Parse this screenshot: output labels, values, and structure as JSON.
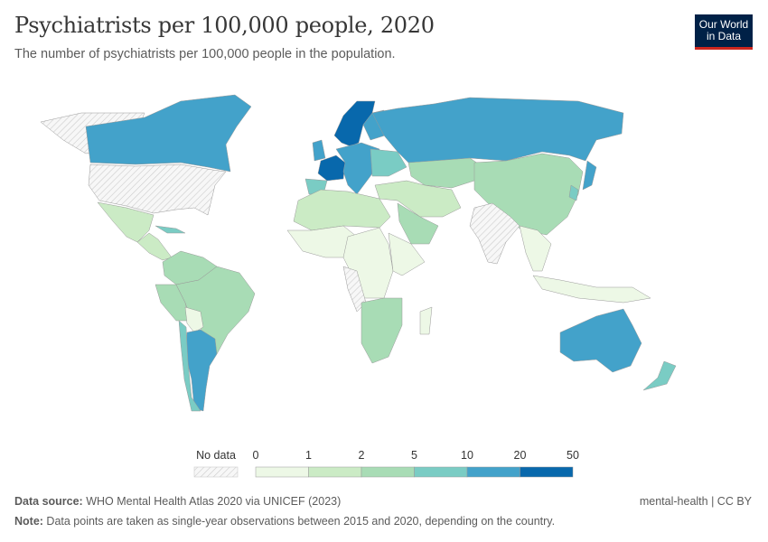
{
  "title": "Psychiatrists per 100,000 people, 2020",
  "subtitle": "The number of psychiatrists per 100,000 people in the population.",
  "logo": {
    "line1": "Our World",
    "line2": "in Data"
  },
  "legend": {
    "no_data_label": "No data",
    "ticks": [
      "0",
      "1",
      "2",
      "5",
      "10",
      "20",
      "50"
    ],
    "colors": [
      "#edf8e6",
      "#cbebc5",
      "#a8dcb5",
      "#7accc4",
      "#43a2ca",
      "#0868ac"
    ],
    "no_data_color": "#f2f2f2"
  },
  "chart_data": {
    "type": "choropleth",
    "scale_breaks": [
      0,
      1,
      2,
      5,
      10,
      20,
      50
    ],
    "regions": [
      {
        "region": "greenland",
        "bin": -1
      },
      {
        "region": "canada",
        "bin": 4
      },
      {
        "region": "usa",
        "bin": -1
      },
      {
        "region": "mexico",
        "bin": 1
      },
      {
        "region": "central-america",
        "bin": 1
      },
      {
        "region": "cuba",
        "bin": 3
      },
      {
        "region": "colombia-venezuela",
        "bin": 2
      },
      {
        "region": "peru",
        "bin": 2
      },
      {
        "region": "brazil",
        "bin": 2
      },
      {
        "region": "bolivia",
        "bin": 0
      },
      {
        "region": "argentina",
        "bin": 4
      },
      {
        "region": "chile",
        "bin": 3
      },
      {
        "region": "norway-sweden",
        "bin": 5
      },
      {
        "region": "finland",
        "bin": 4
      },
      {
        "region": "uk",
        "bin": 4
      },
      {
        "region": "france",
        "bin": 5
      },
      {
        "region": "iberia",
        "bin": 3
      },
      {
        "region": "central-europe",
        "bin": 4
      },
      {
        "region": "eastern-europe",
        "bin": 3
      },
      {
        "region": "russia",
        "bin": 4
      },
      {
        "region": "kazakhstan-central-asia",
        "bin": 2
      },
      {
        "region": "china-mongolia",
        "bin": 2
      },
      {
        "region": "japan",
        "bin": 4
      },
      {
        "region": "korea",
        "bin": 3
      },
      {
        "region": "middle-east",
        "bin": 1
      },
      {
        "region": "saudi-arabia",
        "bin": 2
      },
      {
        "region": "india",
        "bin": -1
      },
      {
        "region": "southeast-asia",
        "bin": 0
      },
      {
        "region": "north-africa",
        "bin": 1
      },
      {
        "region": "west-africa",
        "bin": 0
      },
      {
        "region": "central-africa",
        "bin": 0
      },
      {
        "region": "east-africa",
        "bin": 0
      },
      {
        "region": "horn-africa",
        "bin": -1
      },
      {
        "region": "southern-africa",
        "bin": 2
      },
      {
        "region": "madagascar",
        "bin": 0
      },
      {
        "region": "indonesia",
        "bin": 0
      },
      {
        "region": "australia",
        "bin": 4
      },
      {
        "region": "new-zealand",
        "bin": 3
      }
    ]
  },
  "footer": {
    "source_label": "Data source:",
    "source": " WHO Mental Health Atlas 2020 via UNICEF (2023)",
    "note_label": "Note:",
    "note": " Data points are taken as single-year observations between 2015 and 2020, depending on the country.",
    "license": "mental-health | CC BY"
  }
}
